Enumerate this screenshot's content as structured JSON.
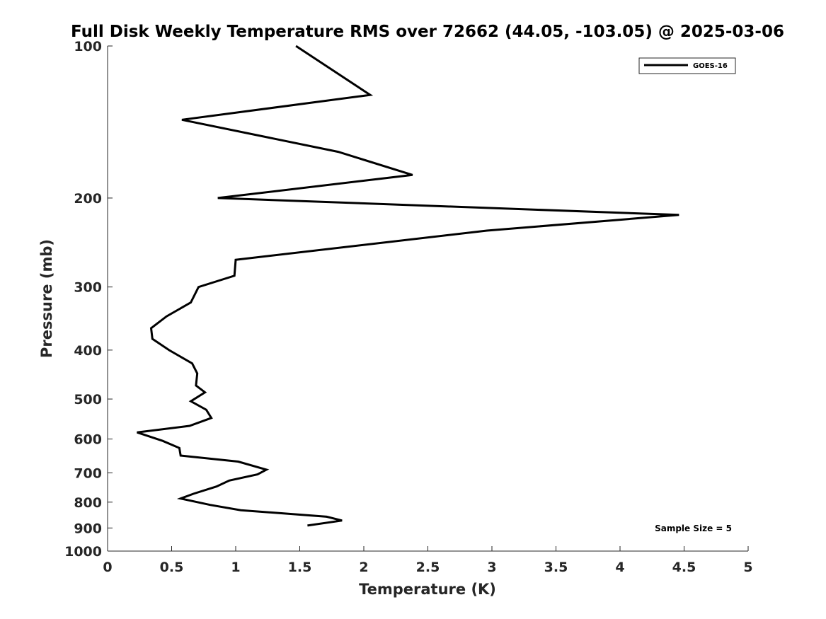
{
  "chart_data": {
    "type": "line",
    "title": "Full Disk Weekly Temperature RMS over 72662 (44.05, -103.05) @ 2025-03-06",
    "xlabel": "Temperature (K)",
    "ylabel": "Pressure (mb)",
    "xlim": [
      0,
      5
    ],
    "ylim": [
      100,
      1000
    ],
    "yscale": "log",
    "y_reversed": true,
    "xticks": [
      0,
      0.5,
      1,
      1.5,
      2,
      2.5,
      3,
      3.5,
      4,
      4.5,
      5
    ],
    "xtick_labels": [
      "0",
      "0.5",
      "1",
      "1.5",
      "2",
      "2.5",
      "3",
      "3.5",
      "4",
      "4.5",
      "5"
    ],
    "yticks": [
      100,
      200,
      300,
      400,
      500,
      600,
      700,
      800,
      900,
      1000
    ],
    "ytick_labels": [
      "100",
      "200",
      "300",
      "400",
      "500",
      "600",
      "700",
      "800",
      "900",
      "1000"
    ],
    "grid": false,
    "legend_position": "top-right",
    "series": [
      {
        "name": "GOES-16",
        "color": "#000000",
        "points": [
          {
            "x": 1.47,
            "y": 100
          },
          {
            "x": 2.05,
            "y": 125
          },
          {
            "x": 0.58,
            "y": 140
          },
          {
            "x": 1.8,
            "y": 162
          },
          {
            "x": 2.38,
            "y": 180
          },
          {
            "x": 0.86,
            "y": 200
          },
          {
            "x": 4.46,
            "y": 216
          },
          {
            "x": 2.96,
            "y": 232
          },
          {
            "x": 1.0,
            "y": 265
          },
          {
            "x": 0.99,
            "y": 285
          },
          {
            "x": 0.71,
            "y": 300
          },
          {
            "x": 0.65,
            "y": 322
          },
          {
            "x": 0.46,
            "y": 343
          },
          {
            "x": 0.34,
            "y": 362
          },
          {
            "x": 0.35,
            "y": 380
          },
          {
            "x": 0.48,
            "y": 400
          },
          {
            "x": 0.66,
            "y": 425
          },
          {
            "x": 0.7,
            "y": 445
          },
          {
            "x": 0.69,
            "y": 470
          },
          {
            "x": 0.76,
            "y": 485
          },
          {
            "x": 0.65,
            "y": 505
          },
          {
            "x": 0.77,
            "y": 525
          },
          {
            "x": 0.81,
            "y": 545
          },
          {
            "x": 0.64,
            "y": 565
          },
          {
            "x": 0.23,
            "y": 582
          },
          {
            "x": 0.43,
            "y": 605
          },
          {
            "x": 0.56,
            "y": 625
          },
          {
            "x": 0.57,
            "y": 647
          },
          {
            "x": 1.02,
            "y": 665
          },
          {
            "x": 1.24,
            "y": 690
          },
          {
            "x": 1.17,
            "y": 705
          },
          {
            "x": 0.95,
            "y": 725
          },
          {
            "x": 0.85,
            "y": 745
          },
          {
            "x": 0.67,
            "y": 770
          },
          {
            "x": 0.57,
            "y": 787
          },
          {
            "x": 0.8,
            "y": 810
          },
          {
            "x": 1.04,
            "y": 830
          },
          {
            "x": 1.71,
            "y": 855
          },
          {
            "x": 1.83,
            "y": 870
          },
          {
            "x": 1.56,
            "y": 890
          }
        ]
      }
    ],
    "annotation": "Sample Size = 5"
  }
}
